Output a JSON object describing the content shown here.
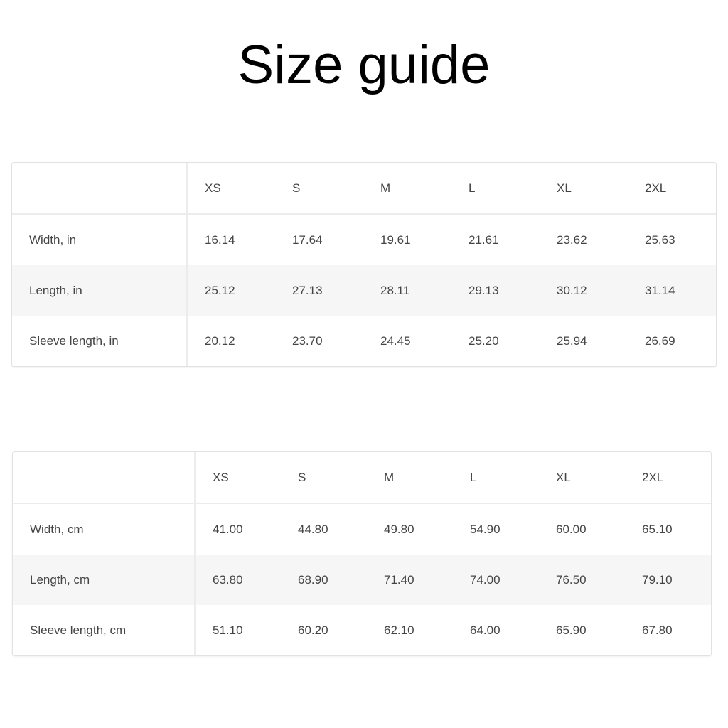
{
  "title": "Size guide",
  "tables": [
    {
      "sizes": [
        "XS",
        "S",
        "M",
        "L",
        "XL",
        "2XL"
      ],
      "rows": [
        {
          "label": "Width, in",
          "values": [
            "16.14",
            "17.64",
            "19.61",
            "21.61",
            "23.62",
            "25.63"
          ]
        },
        {
          "label": "Length, in",
          "values": [
            "25.12",
            "27.13",
            "28.11",
            "29.13",
            "30.12",
            "31.14"
          ]
        },
        {
          "label": "Sleeve length, in",
          "values": [
            "20.12",
            "23.70",
            "24.45",
            "25.20",
            "25.94",
            "26.69"
          ]
        }
      ]
    },
    {
      "sizes": [
        "XS",
        "S",
        "M",
        "L",
        "XL",
        "2XL"
      ],
      "rows": [
        {
          "label": "Width, cm",
          "values": [
            "41.00",
            "44.80",
            "49.80",
            "54.90",
            "60.00",
            "65.10"
          ]
        },
        {
          "label": "Length, cm",
          "values": [
            "63.80",
            "68.90",
            "71.40",
            "74.00",
            "76.50",
            "79.10"
          ]
        },
        {
          "label": "Sleeve length, cm",
          "values": [
            "51.10",
            "60.20",
            "62.10",
            "64.00",
            "65.90",
            "67.80"
          ]
        }
      ]
    }
  ]
}
